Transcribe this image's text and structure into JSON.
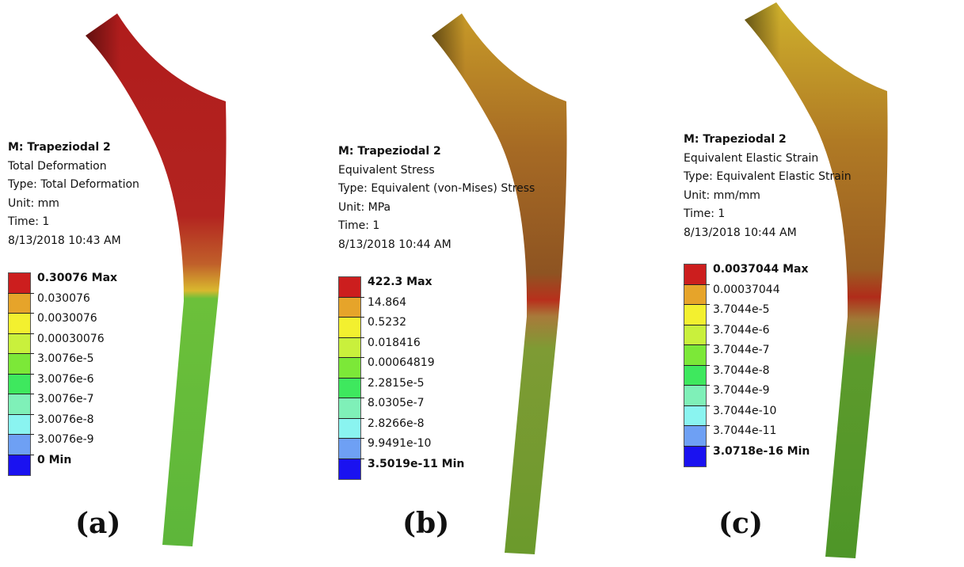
{
  "panels": [
    {
      "caption": "(a)",
      "model": "M: Trapeziodal 2",
      "result": "Total Deformation",
      "type": "Type: Total Deformation",
      "unit": "Unit: mm",
      "time": "Time: 1",
      "timestamp": "8/13/2018 10:43 AM",
      "legend": [
        "0.30076 Max",
        "0.030076",
        "0.0030076",
        "0.00030076",
        "3.0076e-5",
        "3.0076e-6",
        "3.0076e-7",
        "3.0076e-8",
        "3.0076e-9",
        "0 Min"
      ],
      "implant_colors": {
        "head": "#b61f1d",
        "mid": "#b72722",
        "transition": "#d6b22c",
        "stem": "#5fbf39"
      }
    },
    {
      "caption": "(b)",
      "model": "M: Trapeziodal 2",
      "result": "Equivalent Stress",
      "type": "Type: Equivalent (von-Mises) Stress",
      "unit": "Unit: MPa",
      "time": "Time: 1",
      "timestamp": "8/13/2018 10:44 AM",
      "legend": [
        "422.3 Max",
        "14.864",
        "0.5232",
        "0.018416",
        "0.00064819",
        "2.2815e-5",
        "8.0305e-7",
        "2.8266e-8",
        "9.9491e-10",
        "3.5019e-11 Min"
      ],
      "implant_colors": {
        "head": "#c28a25",
        "mid": "#9a5a22",
        "transition": "#b53c1f",
        "stem": "#6e9a2e"
      }
    },
    {
      "caption": "(c)",
      "model": "M: Trapeziodal 2",
      "result": "Equivalent Elastic Strain",
      "type": "Type: Equivalent Elastic Strain",
      "unit": "Unit: mm/mm",
      "time": "Time: 1",
      "timestamp": "8/13/2018 10:44 AM",
      "legend": [
        "0.0037044 Max",
        "0.00037044",
        "3.7044e-5",
        "3.7044e-6",
        "3.7044e-7",
        "3.7044e-8",
        "3.7044e-9",
        "3.7044e-10",
        "3.7044e-11",
        "3.0718e-16 Min"
      ],
      "implant_colors": {
        "head": "#c8a32a",
        "mid": "#a46a22",
        "transition": "#b4321c",
        "stem": "#4f9a28"
      }
    }
  ],
  "legend_colors": [
    "#cc1e1e",
    "#e6a42a",
    "#f3f02f",
    "#c9f03c",
    "#7ce838",
    "#3ee85e",
    "#7ff0b8",
    "#8af4f0",
    "#6ea0f4",
    "#1a12f0"
  ]
}
